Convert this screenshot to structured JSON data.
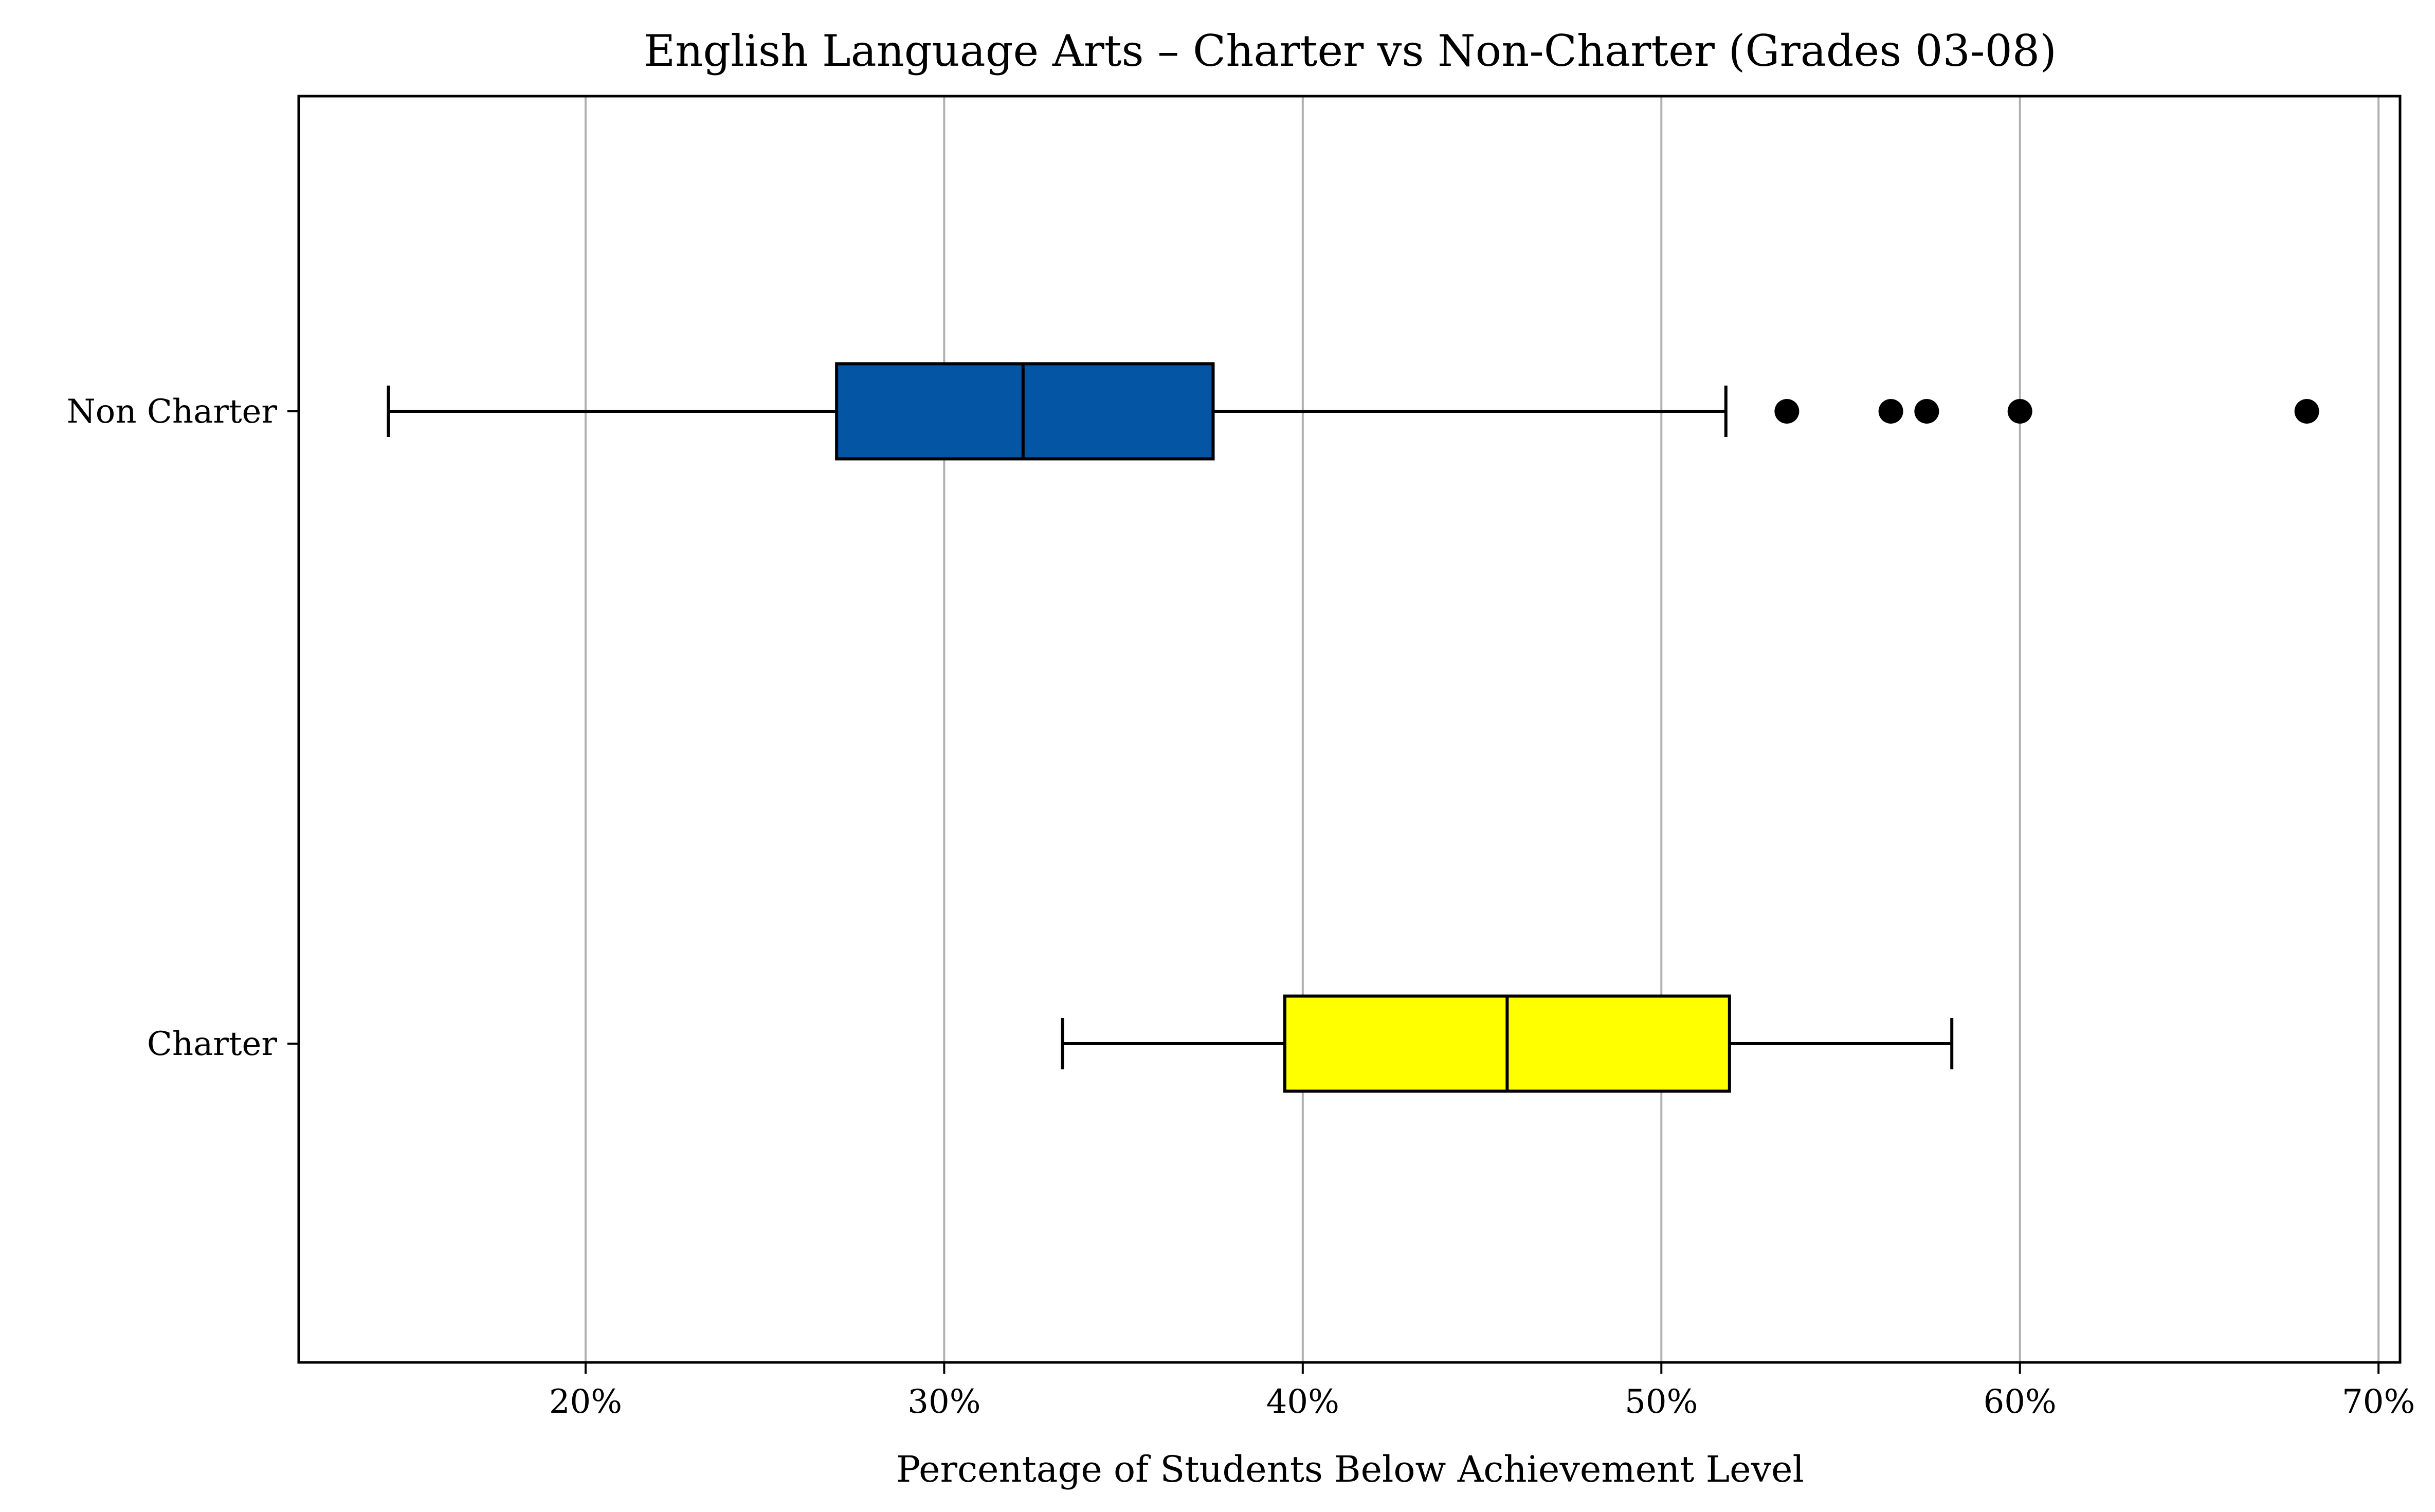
{
  "chart_data": {
    "type": "boxplot",
    "orientation": "horizontal",
    "title": "English Language Arts – Charter vs Non-Charter (Grades 03-08)",
    "xlabel": "Percentage of Students Below Achievement Level",
    "ylabel": "",
    "xlim": [
      12.0,
      70.6
    ],
    "xticks": [
      20,
      30,
      40,
      50,
      60,
      70
    ],
    "xtick_labels": [
      "20%",
      "30%",
      "40%",
      "50%",
      "60%",
      "70%"
    ],
    "grid": "vertical",
    "series": [
      {
        "name": "Non Charter",
        "whisker_low": 14.5,
        "q1": 27.0,
        "median": 32.2,
        "q3": 37.5,
        "whisker_high": 51.8,
        "outliers": [
          53.5,
          56.4,
          57.4,
          60.0,
          68.0
        ],
        "color": "#0455A4"
      },
      {
        "name": "Charter",
        "whisker_low": 33.3,
        "q1": 39.5,
        "median": 45.7,
        "q3": 51.9,
        "whisker_high": 58.1,
        "outliers": [],
        "color": "#FFFF00"
      }
    ]
  }
}
